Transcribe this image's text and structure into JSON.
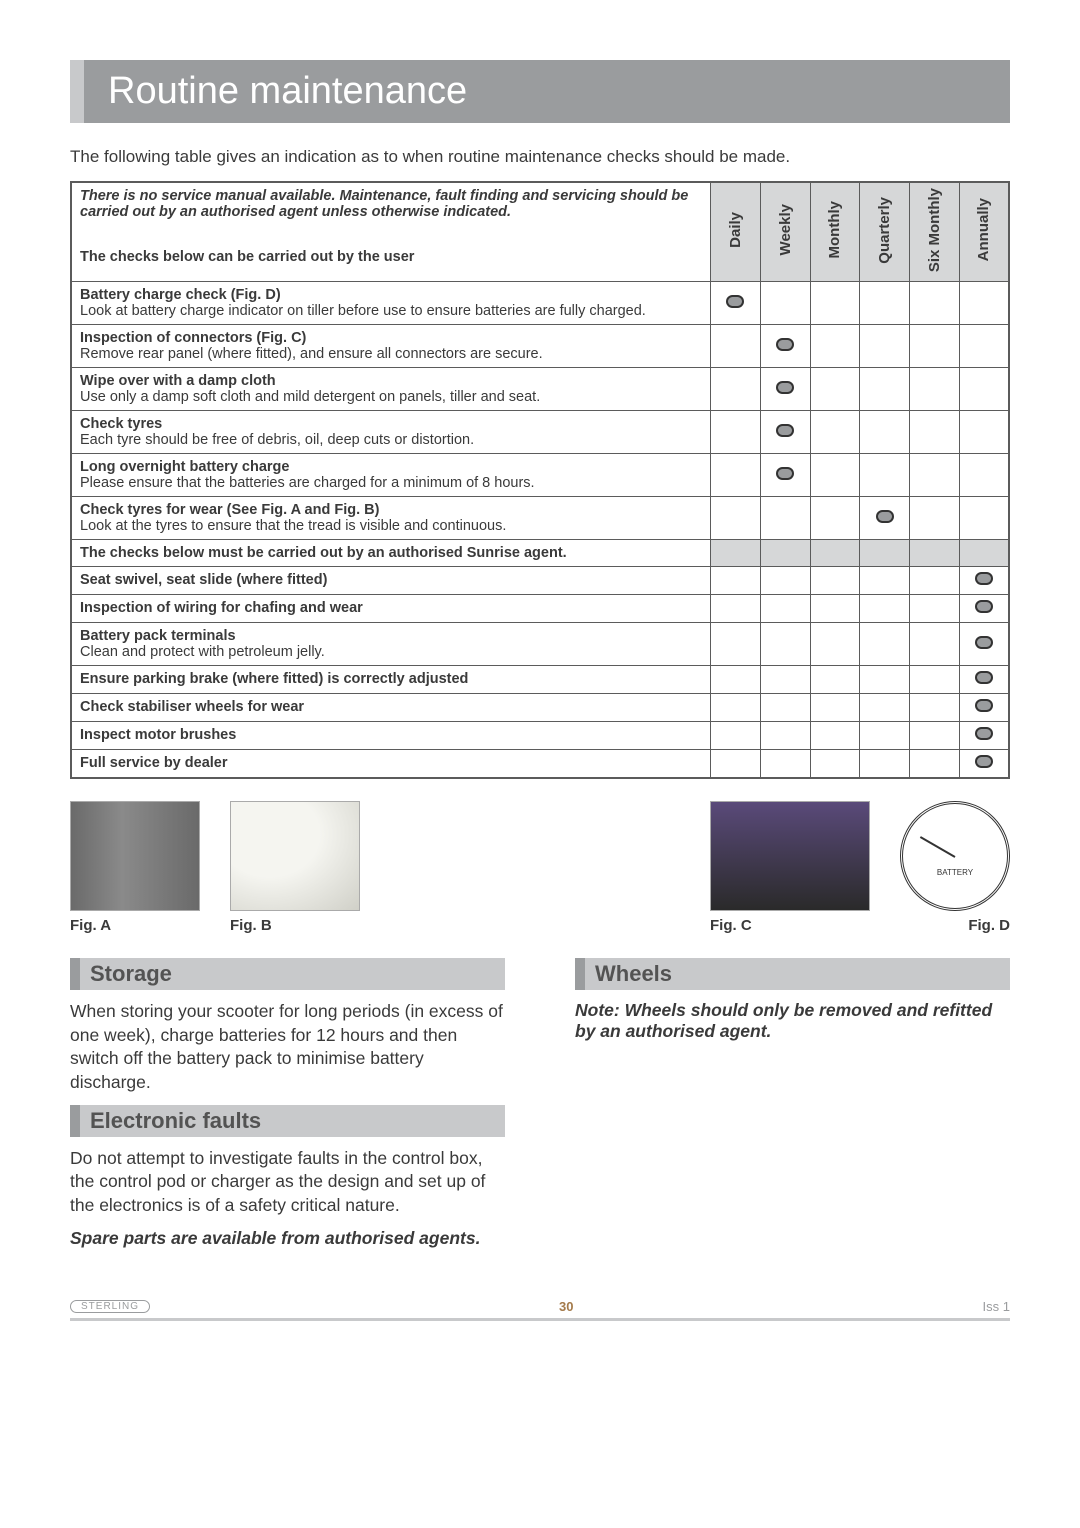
{
  "page_title": "Routine maintenance",
  "intro": "The following table gives an indication as to when routine maintenance checks should be made.",
  "header_note": "There is no service manual available.\nMaintenance, fault finding and servicing should be carried out by an authorised agent unless otherwise indicated.",
  "header_sub": "The checks below can be carried out by the user",
  "freq_labels": [
    "Daily",
    "Weekly",
    "Monthly",
    "Quarterly",
    "Six Monthly",
    "Annually"
  ],
  "rows_user": [
    {
      "title": "Battery charge check (Fig. D)",
      "desc": "Look at battery charge indicator on tiller before use to ensure batteries are fully charged.",
      "freq": 0
    },
    {
      "title": "Inspection of connectors (Fig. C)",
      "desc": "Remove rear panel (where fitted), and ensure all connectors are secure.",
      "freq": 1
    },
    {
      "title": "Wipe over with a damp cloth",
      "desc": "Use only a damp soft cloth and mild detergent on panels, tiller and seat.",
      "freq": 1
    },
    {
      "title": "Check tyres",
      "desc": "Each tyre should be free of debris, oil, deep cuts or distortion.",
      "freq": 1
    },
    {
      "title": "Long overnight battery charge",
      "desc": "Please ensure that the batteries are charged for a minimum of 8 hours.",
      "freq": 1
    },
    {
      "title": "Check tyres for wear (See Fig. A and Fig. B)",
      "desc": "Look at the tyres to ensure that the tread is visible and continuous.",
      "freq": 3
    }
  ],
  "section_agent": "The checks below must be carried out by an authorised Sunrise agent.",
  "rows_agent": [
    {
      "title": "Seat swivel, seat slide (where fitted)",
      "desc": "",
      "freq": 5
    },
    {
      "title": "Inspection of wiring for chafing and wear",
      "desc": "",
      "freq": 5
    },
    {
      "title": "Battery pack terminals",
      "desc": "Clean and protect with petroleum jelly.",
      "freq": 5
    },
    {
      "title": "Ensure parking brake (where fitted) is correctly adjusted",
      "desc": "",
      "freq": 5
    },
    {
      "title": "Check stabiliser wheels for wear",
      "desc": "",
      "freq": 5
    },
    {
      "title": "Inspect motor brushes",
      "desc": "",
      "freq": 5
    },
    {
      "title": "Full service by dealer",
      "desc": "",
      "freq": 5
    }
  ],
  "figures": {
    "a": "Fig. A",
    "b": "Fig. B",
    "c": "Fig. C",
    "d": "Fig. D",
    "gauge_text": "BATTERY"
  },
  "storage": {
    "heading": "Storage",
    "body": "When storing your scooter for long periods (in excess of one week), charge batteries for 12 hours and then switch off the battery pack to minimise battery discharge."
  },
  "electronic": {
    "heading": "Electronic  faults",
    "body": "Do not attempt to investigate faults in the control box, the control pod or charger as the design and set up of the electronics is of a safety critical nature.",
    "note": "Spare parts are available from authorised agents."
  },
  "wheels": {
    "heading": "Wheels",
    "note": "Note:  Wheels should only be removed and refitted  by an authorised agent."
  },
  "footer": {
    "brand": "STERLING",
    "page": "30",
    "iss": "Iss 1"
  },
  "colors": {
    "title_bg": "#9a9c9e",
    "title_accent": "#c8c9cb",
    "freq_bg": "#d6d7d8",
    "border": "#5b5b5b",
    "sub_bg": "#c8c9cb",
    "sub_accent": "#9a9c9e",
    "pagenum": "#a47a4a"
  }
}
